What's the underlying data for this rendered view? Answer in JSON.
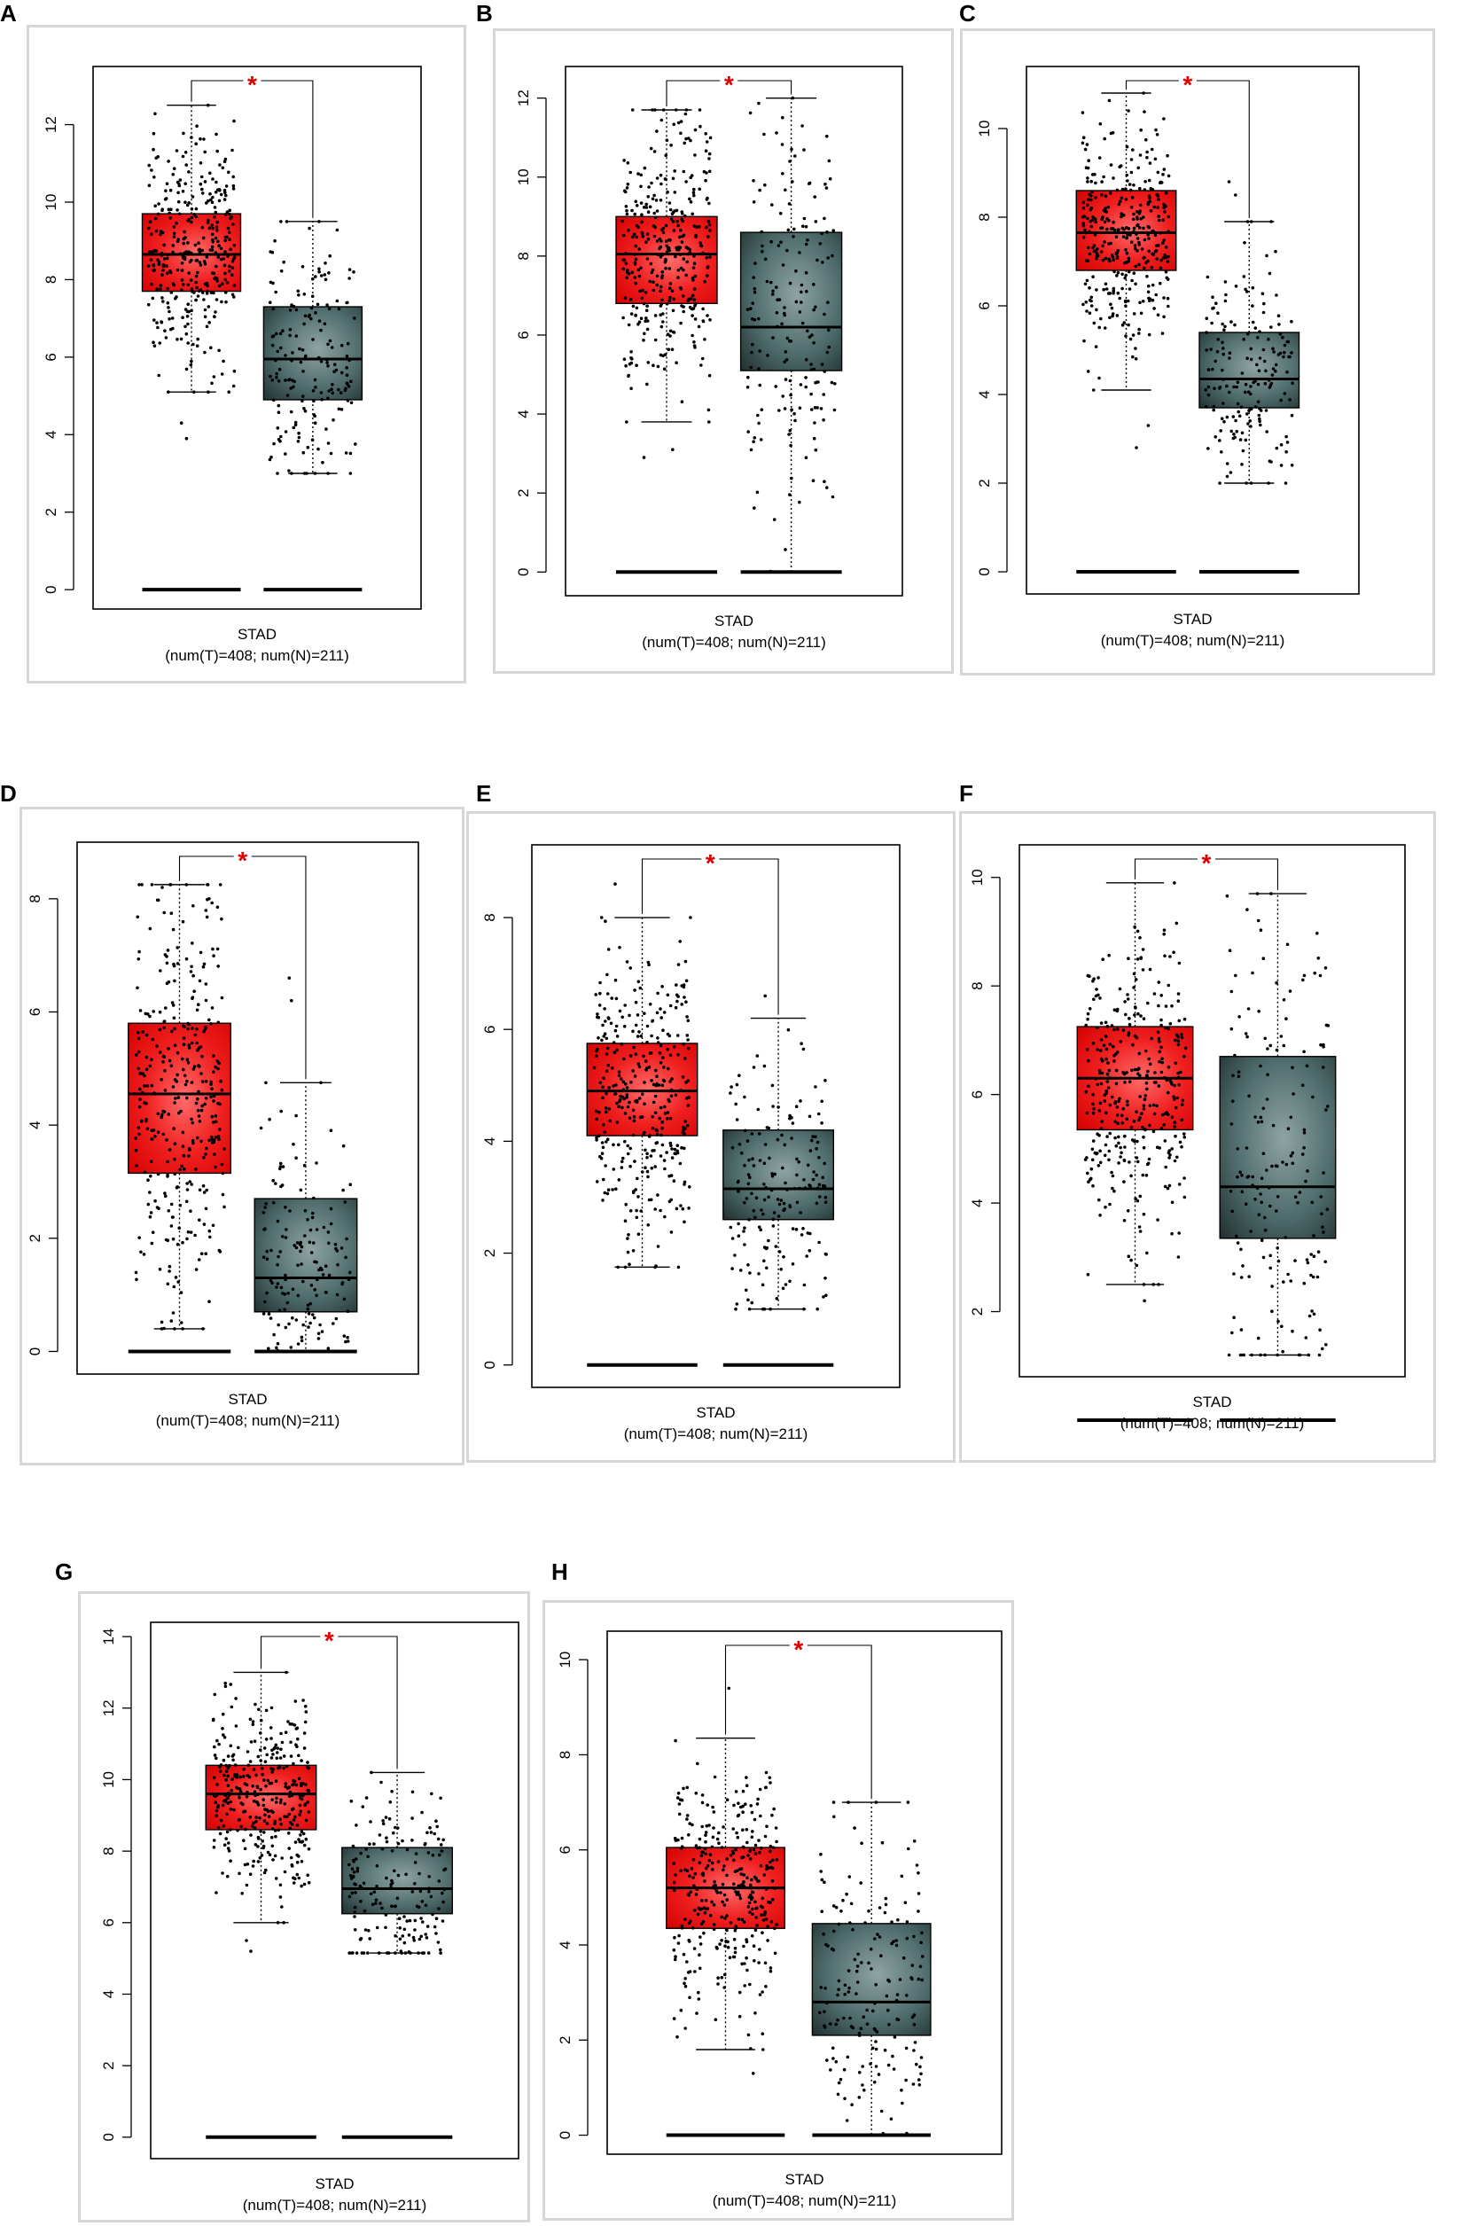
{
  "figure": {
    "panel_letters": [
      "A",
      "B",
      "C",
      "D",
      "E",
      "F",
      "G",
      "H"
    ]
  },
  "colors": {
    "tumor_box": "#ee1111",
    "normal_box": "#2f4f4f",
    "significance_star": "#dd0000",
    "points": "#000000"
  },
  "chart_data": [
    {
      "panel": "A",
      "type": "boxplot",
      "xlabel": "STAD",
      "subtitle": "(num(T)=408; num(N)=211)",
      "significance": "*",
      "ylim": [
        -0.5,
        13.5
      ],
      "yticks": [
        "0",
        "2",
        "4",
        "6",
        "8",
        "10",
        "12"
      ],
      "ytick_values": [
        0,
        2,
        4,
        6,
        8,
        10,
        12
      ],
      "groups": [
        {
          "name": "T",
          "n": 408,
          "q1": 7.7,
          "median": 8.65,
          "q3": 9.7,
          "whisker_low": 5.1,
          "whisker_high": 12.5,
          "outliers": [
            3.9,
            4.3
          ]
        },
        {
          "name": "N",
          "n": 211,
          "q1": 4.9,
          "median": 5.95,
          "q3": 7.3,
          "whisker_low": 3.0,
          "whisker_high": 9.5,
          "outliers": []
        }
      ]
    },
    {
      "panel": "B",
      "type": "boxplot",
      "xlabel": "STAD",
      "subtitle": "(num(T)=408; num(N)=211)",
      "significance": "*",
      "ylim": [
        -0.6,
        12.8
      ],
      "yticks": [
        "0",
        "2",
        "4",
        "6",
        "8",
        "10",
        "12"
      ],
      "ytick_values": [
        0,
        2,
        4,
        6,
        8,
        10,
        12
      ],
      "groups": [
        {
          "name": "T",
          "n": 408,
          "q1": 6.8,
          "median": 8.05,
          "q3": 9.0,
          "whisker_low": 3.8,
          "whisker_high": 11.7,
          "outliers": [
            2.9,
            3.1
          ]
        },
        {
          "name": "N",
          "n": 211,
          "q1": 5.1,
          "median": 6.2,
          "q3": 8.6,
          "whisker_low": 0.0,
          "whisker_high": 12.0,
          "outliers": []
        }
      ]
    },
    {
      "panel": "C",
      "type": "boxplot",
      "xlabel": "STAD",
      "subtitle": "(num(T)=408; num(N)=211)",
      "significance": "*",
      "ylim": [
        -0.5,
        11.4
      ],
      "yticks": [
        "0",
        "2",
        "4",
        "6",
        "8",
        "10"
      ],
      "ytick_values": [
        0,
        2,
        4,
        6,
        8,
        10
      ],
      "groups": [
        {
          "name": "T",
          "n": 408,
          "q1": 6.8,
          "median": 7.65,
          "q3": 8.6,
          "whisker_low": 4.1,
          "whisker_high": 10.8,
          "outliers": [
            2.8,
            3.3
          ]
        },
        {
          "name": "N",
          "n": 211,
          "q1": 3.7,
          "median": 4.35,
          "q3": 5.4,
          "whisker_low": 2.0,
          "whisker_high": 7.9,
          "outliers": [
            8.5,
            8.8
          ]
        }
      ]
    },
    {
      "panel": "D",
      "type": "boxplot",
      "xlabel": "STAD",
      "subtitle": "(num(T)=408; num(N)=211)",
      "significance": "*",
      "ylim": [
        -0.4,
        9.0
      ],
      "yticks": [
        "0",
        "2",
        "4",
        "6",
        "8"
      ],
      "ytick_values": [
        0,
        2,
        4,
        6,
        8
      ],
      "groups": [
        {
          "name": "T",
          "n": 408,
          "q1": 3.15,
          "median": 4.55,
          "q3": 5.8,
          "whisker_low": 0.4,
          "whisker_high": 8.25,
          "outliers": []
        },
        {
          "name": "N",
          "n": 211,
          "q1": 0.7,
          "median": 1.3,
          "q3": 2.7,
          "whisker_low": 0.0,
          "whisker_high": 4.75,
          "outliers": [
            6.2,
            6.6
          ]
        }
      ]
    },
    {
      "panel": "E",
      "type": "boxplot",
      "xlabel": "STAD",
      "subtitle": "(num(T)=408; num(N)=211)",
      "significance": "*",
      "ylim": [
        -0.4,
        9.3
      ],
      "yticks": [
        "0",
        "2",
        "4",
        "6",
        "8"
      ],
      "ytick_values": [
        0,
        2,
        4,
        6,
        8
      ],
      "groups": [
        {
          "name": "T",
          "n": 408,
          "q1": 4.1,
          "median": 4.9,
          "q3": 5.75,
          "whisker_low": 1.75,
          "whisker_high": 8.0,
          "outliers": [
            8.6
          ]
        },
        {
          "name": "N",
          "n": 211,
          "q1": 2.6,
          "median": 3.15,
          "q3": 4.2,
          "whisker_low": 1.0,
          "whisker_high": 6.2,
          "outliers": [
            6.6
          ]
        }
      ]
    },
    {
      "panel": "F",
      "type": "boxplot",
      "xlabel": "STAD",
      "subtitle": "(num(T)=408; num(N)=211)",
      "significance": "*",
      "ylim": [
        0.8,
        10.6
      ],
      "yticks": [
        "2",
        "4",
        "6",
        "8",
        "10"
      ],
      "ytick_values": [
        2,
        4,
        6,
        8,
        10
      ],
      "groups": [
        {
          "name": "T",
          "n": 408,
          "q1": 5.35,
          "median": 6.3,
          "q3": 7.25,
          "whisker_low": 2.5,
          "whisker_high": 9.9,
          "outliers": [
            2.2
          ]
        },
        {
          "name": "N",
          "n": 211,
          "q1": 3.35,
          "median": 4.3,
          "q3": 6.7,
          "whisker_low": 1.2,
          "whisker_high": 9.7,
          "outliers": []
        }
      ]
    },
    {
      "panel": "G",
      "type": "boxplot",
      "xlabel": "STAD",
      "subtitle": "(num(T)=408; num(N)=211)",
      "significance": "*",
      "ylim": [
        -0.6,
        14.4
      ],
      "yticks": [
        "0",
        "2",
        "4",
        "6",
        "8",
        "10",
        "12",
        "14"
      ],
      "ytick_values": [
        0,
        2,
        4,
        6,
        8,
        10,
        12,
        14
      ],
      "groups": [
        {
          "name": "T",
          "n": 408,
          "q1": 8.6,
          "median": 9.6,
          "q3": 10.4,
          "whisker_low": 6.0,
          "whisker_high": 13.0,
          "outliers": [
            5.2,
            5.5
          ]
        },
        {
          "name": "N",
          "n": 211,
          "q1": 6.25,
          "median": 6.95,
          "q3": 8.1,
          "whisker_low": 5.15,
          "whisker_high": 10.2,
          "outliers": []
        }
      ]
    },
    {
      "panel": "H",
      "type": "boxplot",
      "xlabel": "STAD",
      "subtitle": "(num(T)=408; num(N)=211)",
      "significance": "*",
      "ylim": [
        -0.4,
        10.6
      ],
      "yticks": [
        "0",
        "2",
        "4",
        "6",
        "8",
        "10"
      ],
      "ytick_values": [
        0,
        2,
        4,
        6,
        8,
        10
      ],
      "groups": [
        {
          "name": "T",
          "n": 408,
          "q1": 4.35,
          "median": 5.2,
          "q3": 6.05,
          "whisker_low": 1.8,
          "whisker_high": 8.35,
          "outliers": [
            1.3,
            9.4
          ]
        },
        {
          "name": "N",
          "n": 211,
          "q1": 2.1,
          "median": 2.8,
          "q3": 4.45,
          "whisker_low": 0.0,
          "whisker_high": 7.0,
          "outliers": []
        }
      ]
    }
  ]
}
